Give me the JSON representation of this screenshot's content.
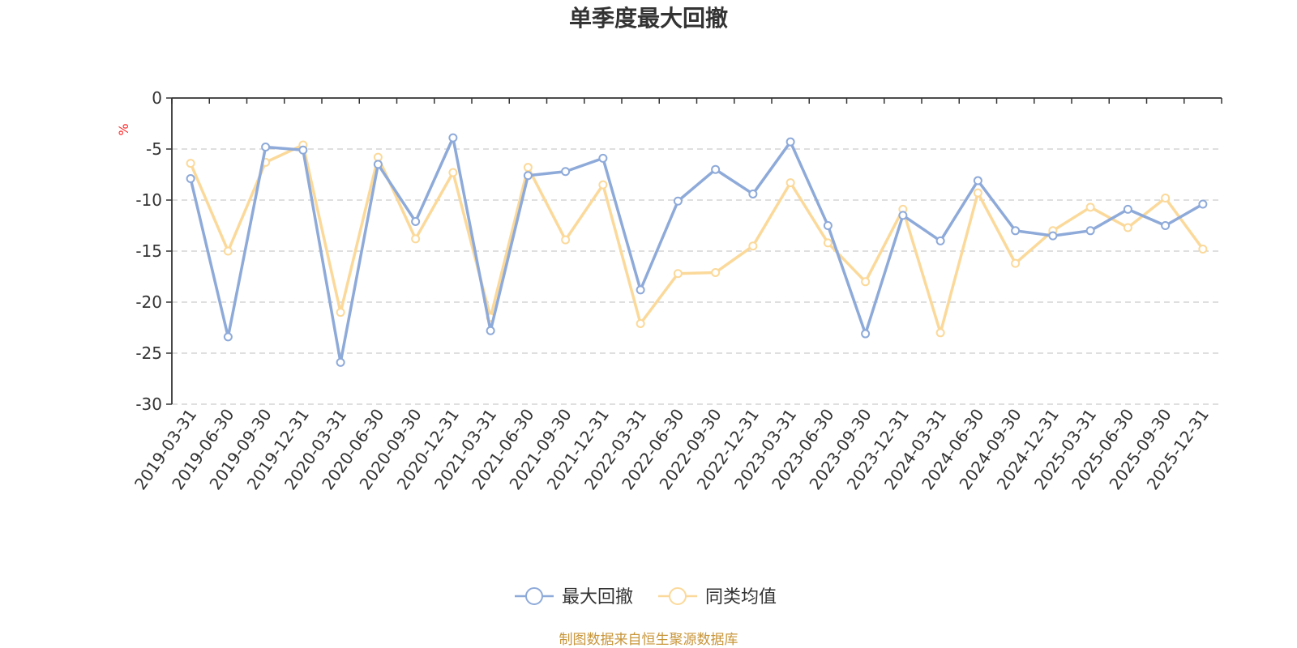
{
  "chart_data": {
    "type": "line",
    "title": "单季度最大回撤",
    "ylabel": "%",
    "ylim": [
      -30,
      0
    ],
    "yticks": [
      0,
      -5,
      -10,
      -15,
      -20,
      -25,
      -30
    ],
    "grid": true,
    "legend_position": "bottom-center",
    "categories": [
      "2019-03-31",
      "2019-06-30",
      "2019-09-30",
      "2019-12-31",
      "2020-03-31",
      "2020-06-30",
      "2020-09-30",
      "2020-12-31",
      "2021-03-31",
      "2021-06-30",
      "2021-09-30",
      "2021-12-31",
      "2022-03-31",
      "2022-06-30",
      "2022-09-30",
      "2022-12-31",
      "2023-03-31",
      "2023-06-30",
      "2023-09-30",
      "2023-12-31",
      "2024-03-31",
      "2024-06-30",
      "2024-09-30",
      "2024-12-31",
      "2025-03-31",
      "2025-06-30",
      "2025-09-30",
      "2025-12-31"
    ],
    "series": [
      {
        "name": "最大回撤",
        "color": "#8eaad9",
        "values": [
          -7.9,
          -23.4,
          -4.8,
          -5.1,
          -25.9,
          -6.5,
          -12.1,
          -3.9,
          -22.8,
          -7.6,
          -7.2,
          -5.9,
          -18.8,
          -10.1,
          -7.0,
          -9.4,
          -4.3,
          -12.5,
          -23.1,
          -11.5,
          -14.0,
          -8.1,
          -13.0,
          -13.5,
          -13.0,
          -10.9,
          -12.5,
          -10.4
        ]
      },
      {
        "name": "同类均值",
        "color": "#fbd99a",
        "values": [
          -6.4,
          -15.0,
          -6.3,
          -4.6,
          -21.0,
          -5.8,
          -13.8,
          -7.3,
          -21.5,
          -6.8,
          -13.9,
          -8.5,
          -22.1,
          -17.2,
          -17.1,
          -14.5,
          -8.3,
          -14.2,
          -18.0,
          -10.9,
          -23.0,
          -9.3,
          -16.2,
          -13.0,
          -10.7,
          -12.7,
          -9.8,
          -14.8
        ]
      }
    ],
    "source": "制图数据来自恒生聚源数据库"
  }
}
